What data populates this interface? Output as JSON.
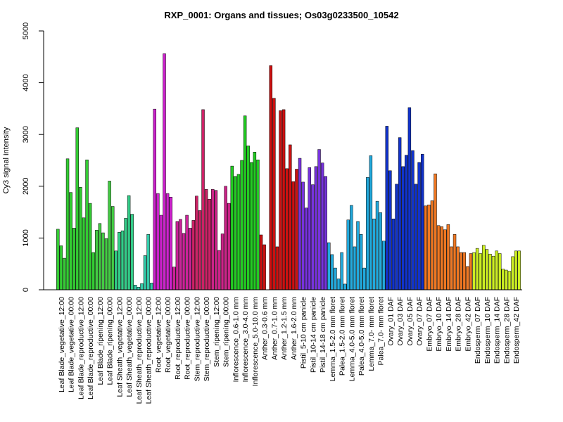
{
  "chart_data": {
    "type": "bar",
    "title": "RXP_0001: Organs and tissues; Os03g0233500_10542",
    "xlabel": "",
    "ylabel": "Cy3 signal intensity",
    "ylim": [
      0,
      5000
    ],
    "yticks": [
      0,
      1000,
      2000,
      3000,
      4000,
      5000
    ],
    "grid": false,
    "legend": "none",
    "xtick_labels": [
      "Leaf Blade_vegetative_12:00",
      "Leaf Blade_vegetative_00:00",
      "Leaf Blade_reproductive_12:00",
      "Leaf Blade_reproductive_00:00",
      "Leaf Blade_ripening_12:00",
      "Leaf Blade_ripening_00:00",
      "Leaf Sheath_vegetative_12:00",
      "Leaf Sheath_vegetative_00:00",
      "Leaf Sheath_reproductive_12:00",
      "Leaf Sheath_reproductive_00:00",
      "Root_vegetative_12:00",
      "Root_vegetative_00:00",
      "Root_reproductive_12:00",
      "Root_reproductive_00:00",
      "Stem_reproductive_12:00",
      "Stem_reproductive_00:00",
      "Stem_ripening_12:00",
      "Stem_ripening_00:00",
      "Inflorescence_0.6-1.0 mm",
      "Inflorescence_3.0-4.0 mm",
      "Inflorescence_5.0-10.0 mm",
      "Anther_0.3-0.6 mm",
      "Anther_0.7-1.0 mm",
      "Anther_1.2-1.5 mm",
      "Anther_1.6-2.0 mm",
      "Pistil_5-10 cm panicle",
      "Pistil_10-14 cm panicle",
      "Pistil_14-18 cm panicle",
      "Lemma_1.5-2.0 mm floret",
      "Palea_1.5-2.0 mm floret",
      "Lemma_4.0-5.0 mm floret",
      "Palea_4.0-5.0 mm floret",
      "Lemma_7.0- mm floret",
      "Palea_7.0- mm floret",
      "Ovary_01 DAF",
      "Ovary_03 DAF",
      "Ovary_05 DAF",
      "Ovary_07 DAF",
      "Embryo_07 DAF",
      "Embryo_10 DAF",
      "Embryo_14 DAF",
      "Embryo_28 DAF",
      "Embryo_42 DAF",
      "Endosperm_07 DAF",
      "Endosperm_10 DAF",
      "Endosperm_14 DAF",
      "Endosperm_28 DAF",
      "Endosperm_42 DAF"
    ],
    "groups": [
      {
        "color": "#33cc33",
        "values": [
          1170,
          850,
          610
        ]
      },
      {
        "color": "#33cc33",
        "values": [
          2530,
          1880,
          1190
        ]
      },
      {
        "color": "#33cc33",
        "values": [
          3130,
          1980,
          1390
        ]
      },
      {
        "color": "#33cc33",
        "values": [
          2510,
          1670,
          720
        ]
      },
      {
        "color": "#44cc44",
        "values": [
          1150,
          1280,
          1100
        ]
      },
      {
        "color": "#44cc44",
        "values": [
          990,
          2100,
          1610
        ]
      },
      {
        "color": "#33cc88",
        "values": [
          750,
          1110,
          1140
        ]
      },
      {
        "color": "#33cc88",
        "values": [
          1380,
          1820,
          1460
        ]
      },
      {
        "color": "#33ccaa",
        "values": [
          90,
          50,
          120
        ]
      },
      {
        "color": "#33ccaa",
        "values": [
          660,
          1070,
          130
        ]
      },
      {
        "color": "#cc22cc",
        "values": [
          3490,
          1860,
          1440
        ]
      },
      {
        "color": "#cc22cc",
        "values": [
          4560,
          1860,
          1790
        ]
      },
      {
        "color": "#cc2299",
        "values": [
          440,
          1320,
          1360
        ]
      },
      {
        "color": "#cc2299",
        "values": [
          1090,
          1440,
          1190
        ]
      },
      {
        "color": "#cc2266",
        "values": [
          1340,
          1810,
          1530
        ]
      },
      {
        "color": "#cc2266",
        "values": [
          3480,
          1940,
          1750
        ]
      },
      {
        "color": "#cc2288",
        "values": [
          1940,
          1920,
          760
        ]
      },
      {
        "color": "#cc2288",
        "values": [
          1080,
          2000,
          1670
        ]
      },
      {
        "color": "#22cc22",
        "values": [
          2390,
          2190,
          2230
        ]
      },
      {
        "color": "#22cc22",
        "values": [
          2500,
          3360,
          2780
        ]
      },
      {
        "color": "#22cc22",
        "values": [
          2460,
          2660,
          2510
        ]
      },
      {
        "color": "#cc1111",
        "values": [
          1060,
          870
        ]
      },
      {
        "color": "#cc1111",
        "values": [
          4330,
          3700,
          830
        ]
      },
      {
        "color": "#cc1111",
        "values": [
          3460,
          3480,
          2340
        ]
      },
      {
        "color": "#cc1111",
        "values": [
          2800,
          2090,
          2330
        ]
      },
      {
        "color": "#7733dd",
        "values": [
          2540,
          2080,
          1580
        ]
      },
      {
        "color": "#7733dd",
        "values": [
          2360,
          2030,
          2380
        ]
      },
      {
        "color": "#7733dd",
        "values": [
          2710,
          2450,
          2190
        ]
      },
      {
        "color": "#22aadd",
        "values": [
          910,
          680,
          420
        ]
      },
      {
        "color": "#22aadd",
        "values": [
          210,
          720,
          110
        ]
      },
      {
        "color": "#22aadd",
        "values": [
          1350,
          1630,
          830
        ]
      },
      {
        "color": "#22aadd",
        "values": [
          1320,
          1070,
          420
        ]
      },
      {
        "color": "#22aadd",
        "values": [
          2170,
          2590,
          1370
        ]
      },
      {
        "color": "#22aadd",
        "values": [
          1710,
          1490,
          940
        ]
      },
      {
        "color": "#1133cc",
        "values": [
          3160,
          2300,
          1370
        ]
      },
      {
        "color": "#1133cc",
        "values": [
          2040,
          2940,
          2380
        ]
      },
      {
        "color": "#1133cc",
        "values": [
          2600,
          3520,
          2690
        ]
      },
      {
        "color": "#1133cc",
        "values": [
          2040,
          2460,
          2620
        ]
      },
      {
        "color": "#ee7722",
        "values": [
          1620,
          1640,
          1720
        ]
      },
      {
        "color": "#ee7722",
        "values": [
          2240,
          1240,
          1220
        ]
      },
      {
        "color": "#ee7722",
        "values": [
          1160,
          1260,
          830
        ]
      },
      {
        "color": "#ee7722",
        "values": [
          1070,
          830,
          720
        ]
      },
      {
        "color": "#ee7722",
        "values": [
          720,
          450,
          700
        ]
      },
      {
        "color": "#ccee22",
        "values": [
          720,
          800,
          700
        ]
      },
      {
        "color": "#ccee22",
        "values": [
          860,
          780,
          690
        ]
      },
      {
        "color": "#ccee22",
        "values": [
          650,
          750,
          700
        ]
      },
      {
        "color": "#ccee22",
        "values": [
          400,
          380,
          360
        ]
      },
      {
        "color": "#ccee22",
        "values": [
          640,
          750,
          750
        ]
      }
    ]
  }
}
